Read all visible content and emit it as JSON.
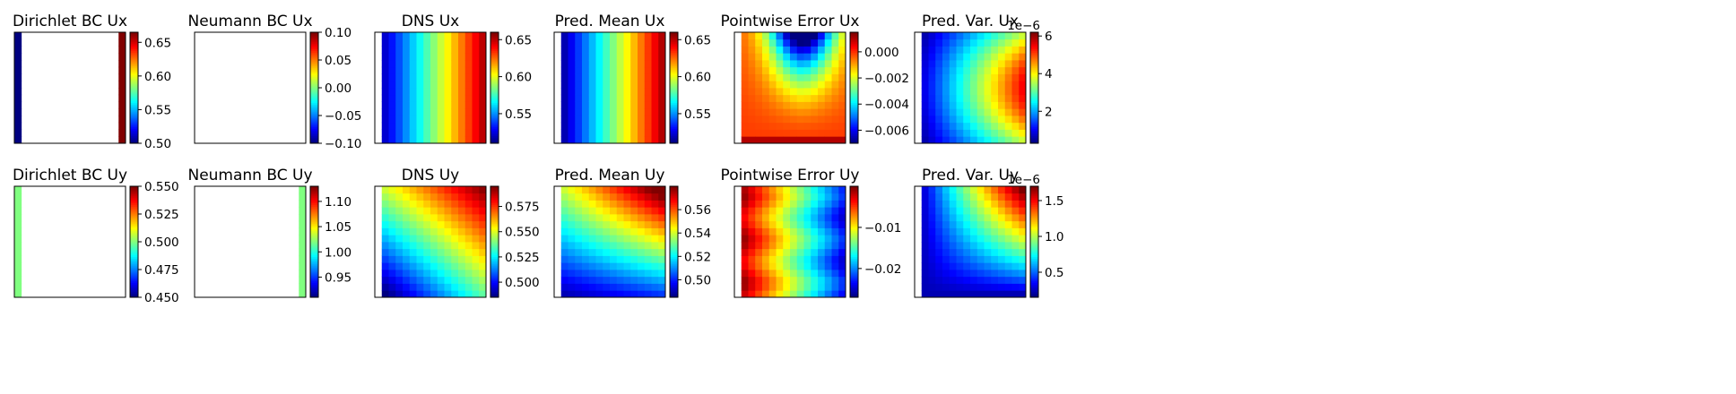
{
  "chart_data": [
    {
      "type": "heatmap",
      "title": "Dirichlet BC Ux",
      "field": "dirichlet_ux",
      "colorbar": {
        "min": 0.5,
        "max": 0.665,
        "ticks": [
          "0.50",
          "0.55",
          "0.60",
          "0.65"
        ],
        "tick_values": [
          0.5,
          0.55,
          0.6,
          0.65
        ],
        "multiplier": ""
      }
    },
    {
      "type": "heatmap",
      "title": "Neumann BC Ux",
      "field": "neumann_ux",
      "colorbar": {
        "min": -0.1,
        "max": 0.1,
        "ticks": [
          "0.10",
          "0.05",
          "0.00",
          "−0.05",
          "−0.10"
        ],
        "tick_values": [
          0.1,
          0.05,
          0.0,
          -0.05,
          -0.1
        ],
        "multiplier": ""
      }
    },
    {
      "type": "heatmap",
      "title": "DNS Ux",
      "field": "dns_ux",
      "colorbar": {
        "min": 0.51,
        "max": 0.66,
        "ticks": [
          "0.65",
          "0.60",
          "0.55"
        ],
        "tick_values": [
          0.65,
          0.6,
          0.55
        ],
        "multiplier": ""
      }
    },
    {
      "type": "heatmap",
      "title": "Pred. Mean Ux",
      "field": "mean_ux",
      "colorbar": {
        "min": 0.51,
        "max": 0.66,
        "ticks": [
          "0.65",
          "0.60",
          "0.55"
        ],
        "tick_values": [
          0.65,
          0.6,
          0.55
        ],
        "multiplier": ""
      }
    },
    {
      "type": "heatmap",
      "title": "Pointwise Error Ux",
      "field": "err_ux",
      "colorbar": {
        "min": -0.007,
        "max": 0.0015,
        "ticks": [
          "0.000",
          "−0.002",
          "−0.004",
          "−0.006"
        ],
        "tick_values": [
          0.0,
          -0.002,
          -0.004,
          -0.006
        ],
        "multiplier": ""
      }
    },
    {
      "type": "heatmap",
      "title": "Pred. Var. Ux",
      "field": "var_ux",
      "colorbar": {
        "min": 0.3,
        "max": 6.2,
        "ticks": [
          "6",
          "4",
          "2"
        ],
        "tick_values": [
          6,
          4,
          2
        ],
        "multiplier": "1e−6"
      }
    },
    {
      "type": "heatmap",
      "title": "Dirichlet BC Uy",
      "field": "dirichlet_uy",
      "colorbar": {
        "min": 0.45,
        "max": 0.55,
        "ticks": [
          "0.550",
          "0.525",
          "0.500",
          "0.475",
          "0.450"
        ],
        "tick_values": [
          0.55,
          0.525,
          0.5,
          0.475,
          0.45
        ],
        "multiplier": ""
      }
    },
    {
      "type": "heatmap",
      "title": "Neumann BC Uy",
      "field": "neumann_uy",
      "colorbar": {
        "min": 0.91,
        "max": 1.13,
        "ticks": [
          "1.10",
          "1.05",
          "1.00",
          "0.95"
        ],
        "tick_values": [
          1.1,
          1.05,
          1.0,
          0.95
        ],
        "multiplier": ""
      }
    },
    {
      "type": "heatmap",
      "title": "DNS Uy",
      "field": "dns_uy",
      "colorbar": {
        "min": 0.485,
        "max": 0.595,
        "ticks": [
          "0.575",
          "0.550",
          "0.525",
          "0.500"
        ],
        "tick_values": [
          0.575,
          0.55,
          0.525,
          0.5
        ],
        "multiplier": ""
      }
    },
    {
      "type": "heatmap",
      "title": "Pred. Mean Uy",
      "field": "mean_uy",
      "colorbar": {
        "min": 0.485,
        "max": 0.58,
        "ticks": [
          "0.56",
          "0.54",
          "0.52",
          "0.50"
        ],
        "tick_values": [
          0.56,
          0.54,
          0.52,
          0.5
        ],
        "multiplier": ""
      }
    },
    {
      "type": "heatmap",
      "title": "Pointwise Error Uy",
      "field": "err_uy",
      "colorbar": {
        "min": -0.027,
        "max": 0.0,
        "ticks": [
          "−0.01",
          "−0.02"
        ],
        "tick_values": [
          -0.01,
          -0.02
        ],
        "multiplier": ""
      }
    },
    {
      "type": "heatmap",
      "title": "Pred. Var. Uy",
      "field": "var_uy",
      "colorbar": {
        "min": 0.15,
        "max": 1.7,
        "ticks": [
          "1.5",
          "1.0",
          "0.5"
        ],
        "tick_values": [
          1.5,
          1.0,
          0.5
        ],
        "multiplier": "1e−6"
      }
    }
  ]
}
